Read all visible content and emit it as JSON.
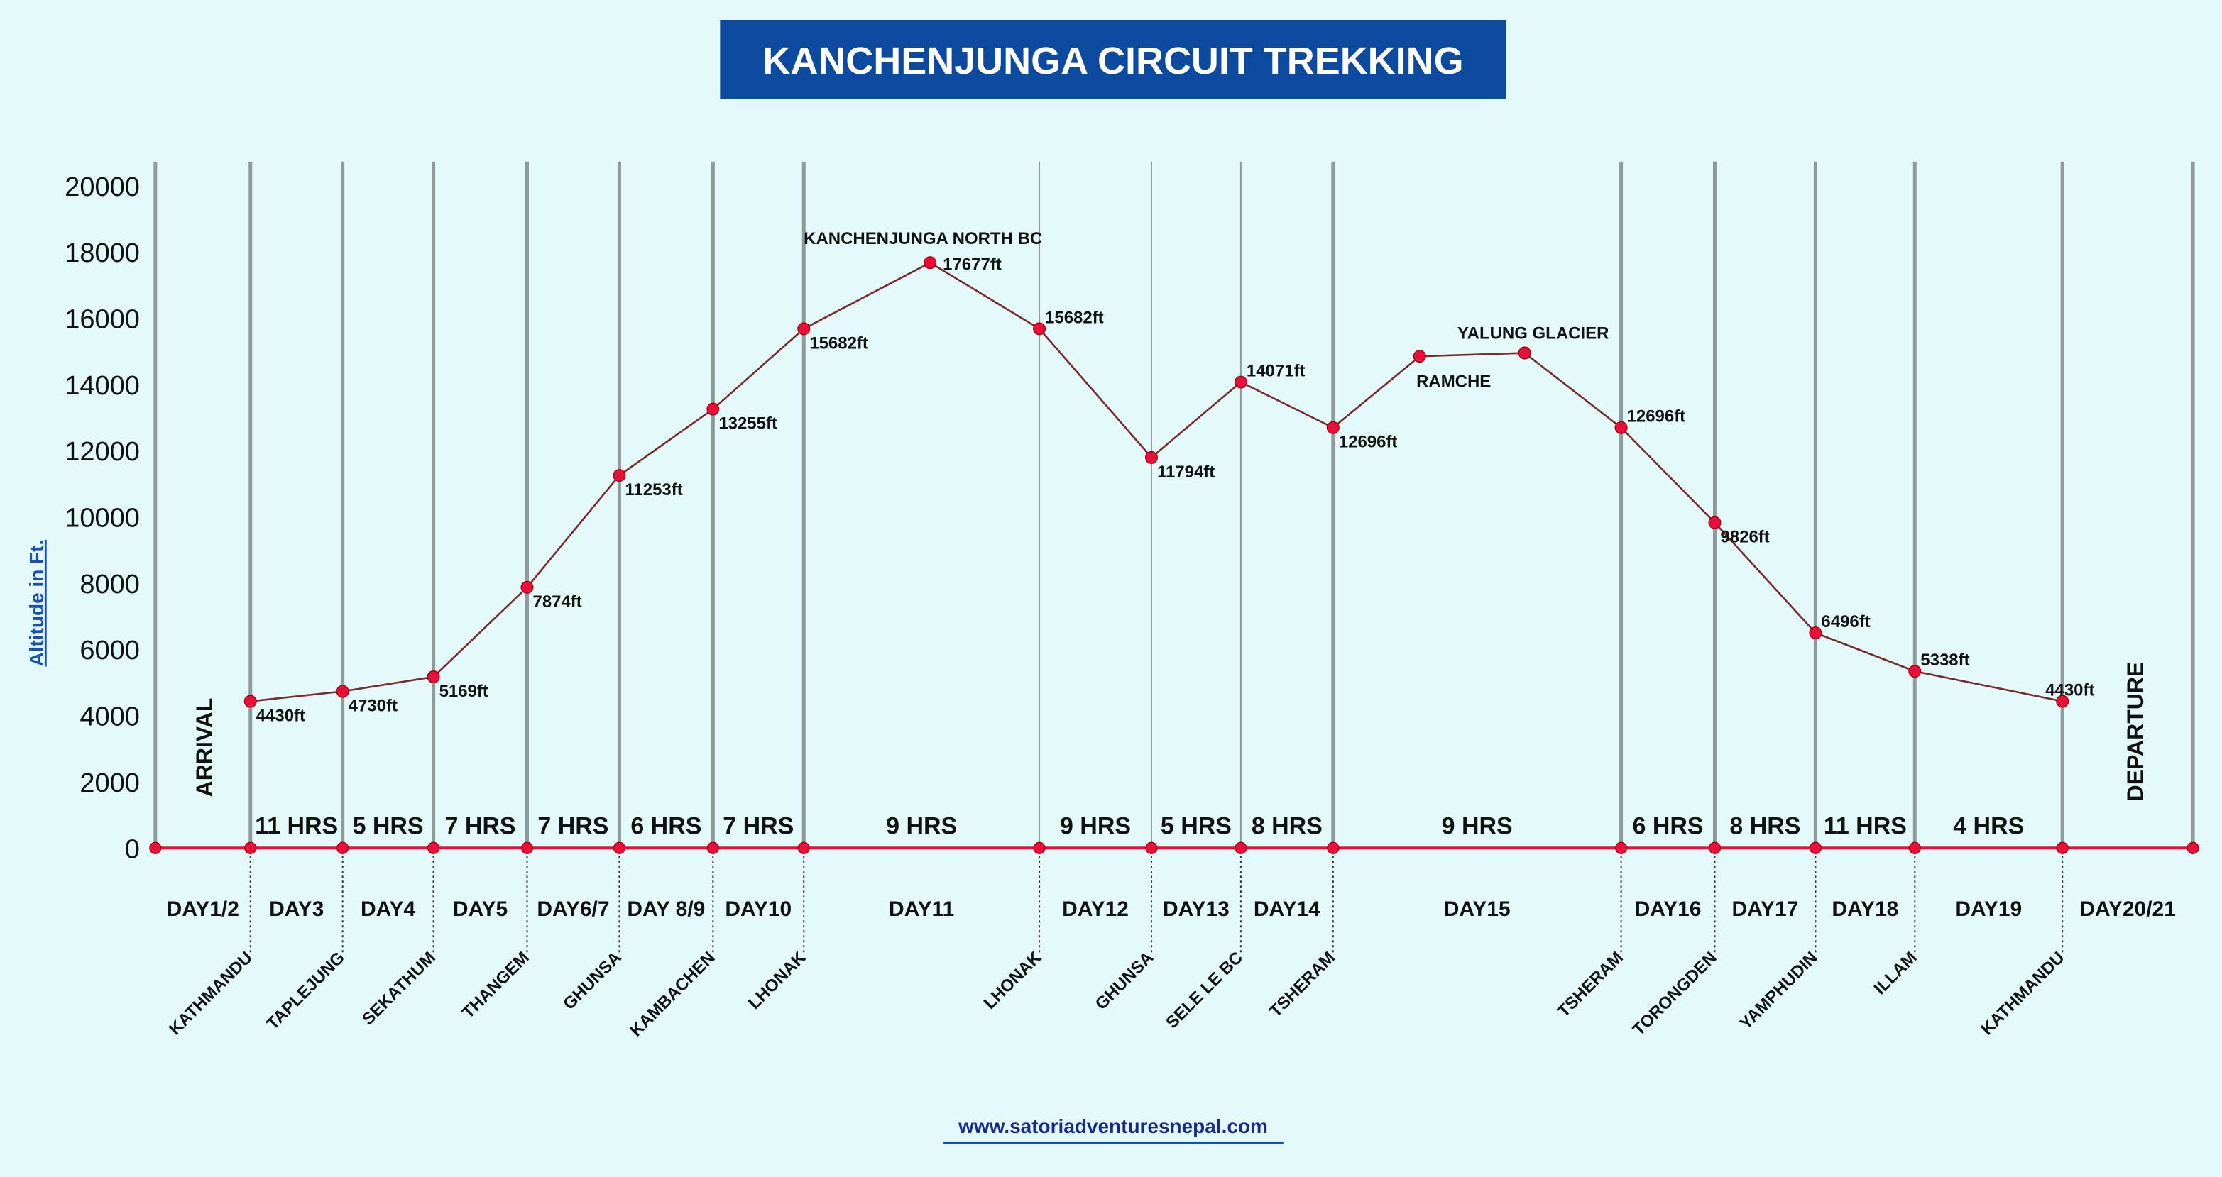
{
  "title": "KANCHENJUNGA CIRCUIT TREKKING",
  "website": "www.satoriadventuresnepal.com",
  "colors": {
    "background": "#e4fafa",
    "title_bg": "#0b4a9e",
    "line": "#7a2a2a",
    "point": "#e8103a",
    "baseline": "#e8103a",
    "gridline": "#8f9a9a",
    "ylabel": "#1a4fb0"
  },
  "chart_data": {
    "type": "line",
    "title": "KANCHENJUNGA CIRCUIT TREKKING",
    "ylabel": "Altitude in Ft.",
    "ylim": [
      0,
      20000
    ],
    "yticks": [
      0,
      2000,
      4000,
      6000,
      8000,
      10000,
      12000,
      14000,
      16000,
      18000,
      20000
    ],
    "grid": "vertical",
    "start_label": "ARRIVAL",
    "end_label": "DEPARTURE",
    "days": [
      "DAY1/2",
      "DAY3",
      "DAY4",
      "DAY5",
      "DAY6/7",
      "DAY 8/9",
      "DAY10",
      "DAY11",
      "DAY12",
      "DAY13",
      "DAY14",
      "DAY15",
      "DAY16",
      "DAY17",
      "DAY18",
      "DAY19",
      "DAY20/21"
    ],
    "hours": [
      "11 HRS",
      "5 HRS",
      "7 HRS",
      "7 HRS",
      "6 HRS",
      "7 HRS",
      "9 HRS",
      "9 HRS",
      "5 HRS",
      "8 HRS",
      "9 HRS",
      "6 HRS",
      "8 HRS",
      "11 HRS",
      "4 HRS"
    ],
    "places": [
      "KATHMANDU",
      "TAPLEJUNG",
      "SEKATHUM",
      "THANGEM",
      "GHUNSA",
      "KAMBACHEN",
      "LHONAK",
      "LHONAK",
      "GHUNSA",
      "SELE LE BC",
      "TSHERAM",
      "TSHERAM",
      "TORONGDEN",
      "YAMPHUDIN",
      "ILLAM",
      "KATHMANDU"
    ],
    "points": [
      {
        "value": 4430,
        "label": "4430ft"
      },
      {
        "value": 4730,
        "label": "4730ft"
      },
      {
        "value": 5169,
        "label": "5169ft"
      },
      {
        "value": 7874,
        "label": "7874ft"
      },
      {
        "value": 11253,
        "label": "11253ft"
      },
      {
        "value": 13255,
        "label": "13255ft"
      },
      {
        "value": 15682,
        "label": "15682ft"
      },
      {
        "value": 17677,
        "label": "17677ft",
        "name": "KANCHENJUNGA NORTH BC"
      },
      {
        "value": 15682,
        "label": "15682ft"
      },
      {
        "value": 11794,
        "label": "11794ft"
      },
      {
        "value": 14071,
        "label": "14071ft"
      },
      {
        "value": 12696,
        "label": "12696ft"
      },
      {
        "value": 14850,
        "name": "RAMCHE"
      },
      {
        "value": 14950,
        "name": "YALUNG GLACIER"
      },
      {
        "value": 12696,
        "label": "12696ft"
      },
      {
        "value": 9826,
        "label": "9826ft"
      },
      {
        "value": 6496,
        "label": "6496ft"
      },
      {
        "value": 5338,
        "label": "5338ft"
      },
      {
        "value": 4430,
        "label": "4430ft"
      }
    ]
  }
}
